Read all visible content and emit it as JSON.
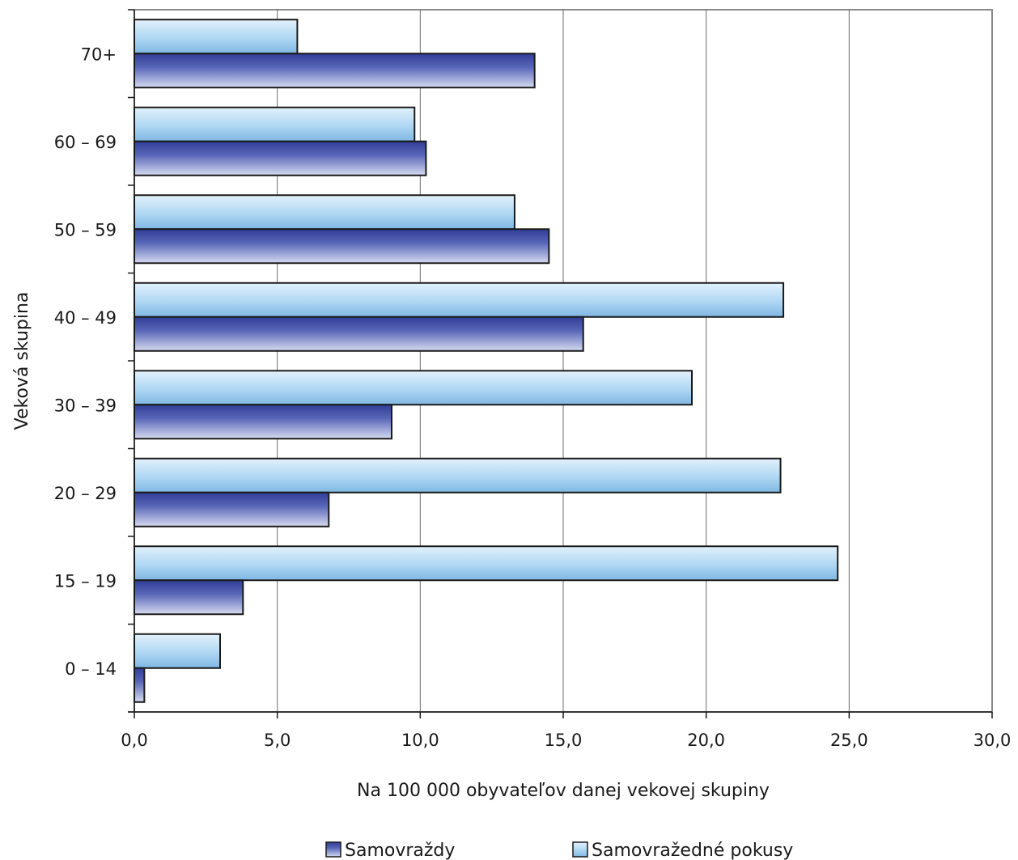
{
  "chart_data": {
    "type": "bar",
    "orientation": "horizontal",
    "categories": [
      "70+",
      "60 – 69",
      "50 – 59",
      "40 – 49",
      "30 – 39",
      "20 – 29",
      "15 – 19",
      "0 – 14"
    ],
    "series": [
      {
        "name": "Samovraždy",
        "values": [
          14.0,
          10.2,
          14.5,
          15.7,
          9.0,
          6.8,
          3.8,
          0.35
        ],
        "color": "#5a66b8"
      },
      {
        "name": "Samovražedné pokusy",
        "values": [
          5.7,
          9.8,
          13.3,
          22.7,
          19.5,
          22.6,
          24.6,
          3.0
        ],
        "color": "#9fcdee"
      }
    ],
    "xlabel": "Na 100 000 obyvateľov danej vekovej skupiny",
    "ylabel": "Veková skupina",
    "xlim": [
      0,
      30
    ],
    "xticks": [
      "0,0",
      "5,0",
      "10,0",
      "15,0",
      "20,0",
      "25,0",
      "30,0"
    ],
    "grid": "vertical",
    "legend_position": "bottom"
  }
}
